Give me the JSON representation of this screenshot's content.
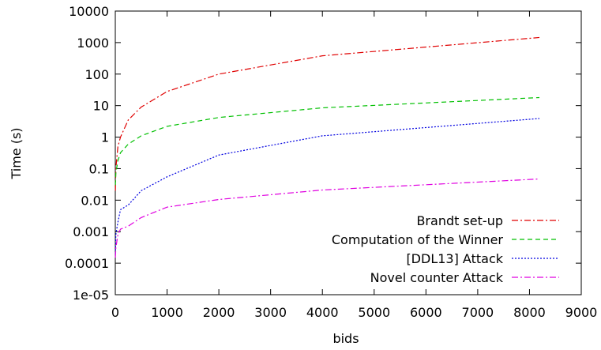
{
  "chart_data": {
    "type": "line",
    "title": "",
    "xlabel": "bids",
    "ylabel": "Time (s)",
    "xlim": [
      0,
      9000
    ],
    "ylim": [
      1e-05,
      10000
    ],
    "yscale": "log",
    "x_ticks": [
      0,
      1000,
      2000,
      3000,
      4000,
      5000,
      6000,
      7000,
      8000,
      9000
    ],
    "x_tick_labels": [
      "0",
      "1000",
      "2000",
      "3000",
      "4000",
      "5000",
      "6000",
      "7000",
      "8000",
      "9000"
    ],
    "y_ticks": [
      1e-05,
      0.0001,
      0.001,
      0.01,
      0.1,
      1,
      10,
      100,
      1000,
      10000
    ],
    "y_tick_labels": [
      "1e-05",
      "0.0001",
      "0.001",
      "0.01",
      "0.1",
      "1",
      "10",
      "100",
      "1000",
      "10000"
    ],
    "grid": false,
    "legend_position": "bottom-right",
    "series": [
      {
        "name": "Brandt set-up",
        "color": "#e00000",
        "dash": "dash-dot",
        "x": [
          2,
          10,
          50,
          100,
          250,
          500,
          1000,
          2000,
          4000,
          8192
        ],
        "y": [
          0.02,
          0.1,
          0.5,
          1.0,
          3.5,
          9,
          28,
          100,
          380,
          1450
        ]
      },
      {
        "name": "Computation of the Winner",
        "color": "#00c000",
        "dash": "dashed",
        "x": [
          2,
          10,
          50,
          100,
          250,
          500,
          1000,
          2000,
          4000,
          8192
        ],
        "y": [
          0.03,
          0.07,
          0.18,
          0.32,
          0.6,
          1.1,
          2.2,
          4.2,
          8.5,
          18
        ]
      },
      {
        "name": "[DDL13] Attack",
        "color": "#0000e0",
        "dash": "dotted",
        "x": [
          2,
          10,
          50,
          100,
          250,
          500,
          1000,
          2000,
          4000,
          8192
        ],
        "y": [
          0.0002,
          0.0008,
          0.002,
          0.005,
          0.007,
          0.02,
          0.055,
          0.27,
          1.1,
          3.9
        ]
      },
      {
        "name": "Novel counter Attack",
        "color": "#e000e0",
        "dash": "dash-dot",
        "x": [
          2,
          10,
          50,
          100,
          250,
          500,
          1000,
          2000,
          4000,
          8192
        ],
        "y": [
          0.00015,
          0.0003,
          0.0008,
          0.0012,
          0.0015,
          0.0028,
          0.006,
          0.0105,
          0.021,
          0.047
        ]
      }
    ]
  }
}
